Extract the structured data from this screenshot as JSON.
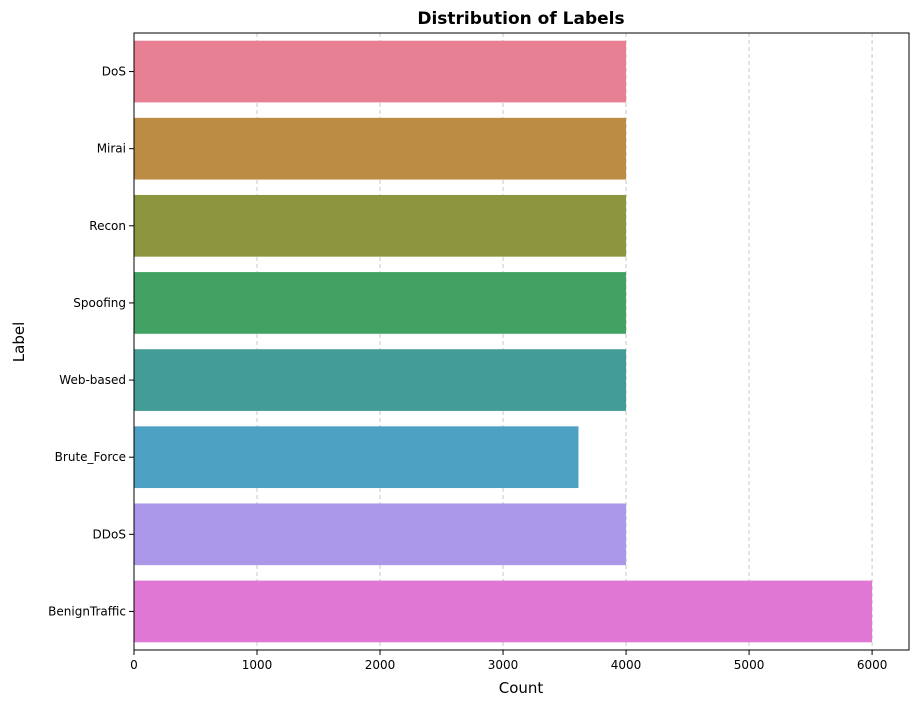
{
  "chart_data": {
    "type": "bar",
    "orientation": "horizontal",
    "title": "Distribution of Labels",
    "xlabel": "Count",
    "ylabel": "Label",
    "categories": [
      "DoS",
      "Mirai",
      "Recon",
      "Spoofing",
      "Web-based",
      "Brute_Force",
      "DDoS",
      "BenignTraffic"
    ],
    "values": [
      4000,
      4000,
      4000,
      4000,
      4000,
      3613,
      4000,
      6000
    ],
    "colors": [
      "#e88093",
      "#bc8c45",
      "#8b963f",
      "#41a264",
      "#449c97",
      "#4da1c3",
      "#ab98e8",
      "#e077d4"
    ],
    "xlim": [
      0,
      6300
    ],
    "xticks": [
      0,
      1000,
      2000,
      3000,
      4000,
      5000,
      6000
    ],
    "grid": {
      "x": true,
      "style": "dashed",
      "color": "#c8c8c8"
    }
  }
}
